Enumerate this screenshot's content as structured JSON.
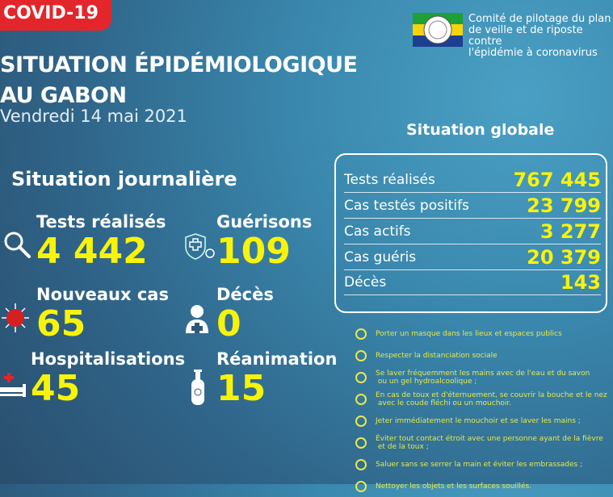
{
  "badge": "COVID-19",
  "title": {
    "line1": "SITUATION ÉPIDÉMIOLOGIQUE",
    "line2": "AU GABON",
    "date": "Vendredi 14 mai 2021"
  },
  "organization": {
    "line1": "Comité de pilotage du plan",
    "line2": "de veille et de riposte contre",
    "line3": "l'épidémie à coronavirus"
  },
  "daily": {
    "heading": "Situation journalière",
    "items": [
      {
        "label": "Tests réalisés",
        "value": "4 442",
        "icon": "magnifier-icon"
      },
      {
        "label": "Guérisons",
        "value": "109",
        "icon": "shield-cross-icon"
      },
      {
        "label": "Nouveaux cas",
        "value": "65",
        "icon": "virus-icon"
      },
      {
        "label": "Décès",
        "value": "0",
        "icon": "person-cross-icon"
      },
      {
        "label": "Hospitalisations",
        "value": "45",
        "icon": "hospital-bed-icon"
      },
      {
        "label": "Réanimation",
        "value": "15",
        "icon": "oxygen-tank-icon"
      }
    ]
  },
  "global": {
    "heading": "Situation globale",
    "rows": [
      {
        "label": "Tests réalisés",
        "value": "767 445"
      },
      {
        "label": "Cas testés positifs",
        "value": "23 799"
      },
      {
        "label": "Cas actifs",
        "value": "3 277"
      },
      {
        "label": "Cas guéris",
        "value": "20 379"
      },
      {
        "label": "Décès",
        "value": "143"
      }
    ]
  },
  "tips": [
    {
      "line1": "Porter un masque dans les lieux et espaces publics",
      "line2": "",
      "icon": "mask-icon"
    },
    {
      "line1": "Respecter la distanciation sociale",
      "line2": "",
      "icon": "distancing-icon"
    },
    {
      "line1": "Se laver fréquemment les mains avec de l'eau et du savon",
      "line2": " ou un gel hydroalcoolique ;",
      "icon": "handwash-icon"
    },
    {
      "line1": "En cas de toux et d'éternuement, se couvrir la bouche et le nez",
      "line2": " avec le coude fléchi ou un mouchoir.",
      "icon": "cough-icon"
    },
    {
      "line1": "Jeter immédiatement le mouchoir et se laver les mains ;",
      "line2": "",
      "icon": "handwash-icon"
    },
    {
      "line1": "Éviter tout contact étroit avec une personne ayant de la fièvre",
      "line2": " et de la toux ;",
      "icon": "distancing-icon"
    },
    {
      "line1": "Saluer sans se serrer la main et éviter les embrassades ;",
      "line2": "",
      "icon": "no-handshake-icon"
    },
    {
      "line1": "Nettoyer les objets et les surfaces souillés.",
      "line2": "",
      "icon": "cleaning-icon"
    }
  ],
  "colors": {
    "accent": "#f7f30a",
    "badge": "#e3262b",
    "background": "#2f6488"
  }
}
